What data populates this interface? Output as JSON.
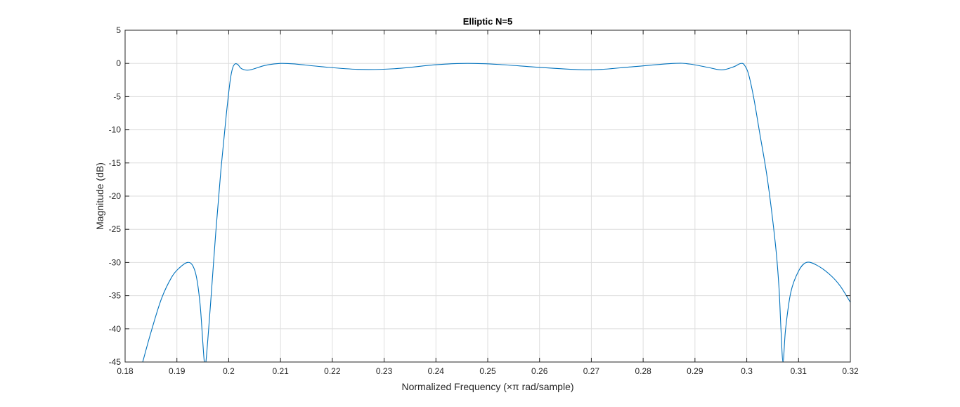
{
  "chart_data": {
    "type": "line",
    "title": "Elliptic N=5",
    "xlabel": "Normalized Frequency (×π rad/sample)",
    "ylabel": "Magnitude (dB)",
    "xlim": [
      0.18,
      0.32
    ],
    "ylim": [
      -45,
      5
    ],
    "xticks": [
      0.18,
      0.19,
      0.2,
      0.21,
      0.22,
      0.23,
      0.24,
      0.25,
      0.26,
      0.27,
      0.28,
      0.29,
      0.3,
      0.31,
      0.32
    ],
    "xtick_labels": [
      "0.18",
      "0.19",
      "0.2",
      "0.21",
      "0.22",
      "0.23",
      "0.24",
      "0.25",
      "0.26",
      "0.27",
      "0.28",
      "0.29",
      "0.3",
      "0.31",
      "0.32"
    ],
    "yticks": [
      5,
      0,
      -5,
      -10,
      -15,
      -20,
      -25,
      -30,
      -35,
      -40,
      -45
    ],
    "ytick_labels": [
      "5",
      "0",
      "-5",
      "-10",
      "-15",
      "-20",
      "-25",
      "-30",
      "-35",
      "-40",
      "-45"
    ],
    "grid": true,
    "series": [
      {
        "color": "#0072BD",
        "x": [
          0.1834,
          0.185,
          0.187,
          0.189,
          0.1905,
          0.192,
          0.193,
          0.1938,
          0.1945,
          0.195,
          0.1953,
          0.1956,
          0.1965,
          0.1975,
          0.1985,
          0.1995,
          0.2003,
          0.2008,
          0.2013,
          0.2018,
          0.2025,
          0.204,
          0.207,
          0.21,
          0.213,
          0.218,
          0.225,
          0.232,
          0.24,
          0.246,
          0.252,
          0.26,
          0.268,
          0.272,
          0.278,
          0.286,
          0.289,
          0.2925,
          0.2952,
          0.2975,
          0.2985,
          0.299,
          0.2995,
          0.3003,
          0.3013,
          0.3025,
          0.304,
          0.3055,
          0.3062,
          0.3066,
          0.307,
          0.3075,
          0.3085,
          0.31,
          0.3115,
          0.3135,
          0.316,
          0.318,
          0.32
        ],
        "y": [
          -45,
          -40.5,
          -35.5,
          -32.2,
          -30.8,
          -30.0,
          -30.4,
          -32.3,
          -36.5,
          -42.0,
          -45,
          -45,
          -36.2,
          -25.5,
          -16.0,
          -8.0,
          -2.5,
          -0.6,
          -0.05,
          -0.2,
          -0.8,
          -1.0,
          -0.3,
          0.0,
          -0.1,
          -0.5,
          -0.9,
          -0.8,
          -0.2,
          0.0,
          -0.15,
          -0.6,
          -0.95,
          -0.9,
          -0.5,
          0.0,
          -0.1,
          -0.6,
          -0.98,
          -0.5,
          -0.1,
          0.0,
          -0.2,
          -1.5,
          -5.0,
          -10.5,
          -17.5,
          -27.0,
          -33.5,
          -40.0,
          -45,
          -40.0,
          -34.5,
          -31.3,
          -30.0,
          -30.4,
          -31.8,
          -33.5,
          -36.0
        ]
      }
    ]
  }
}
